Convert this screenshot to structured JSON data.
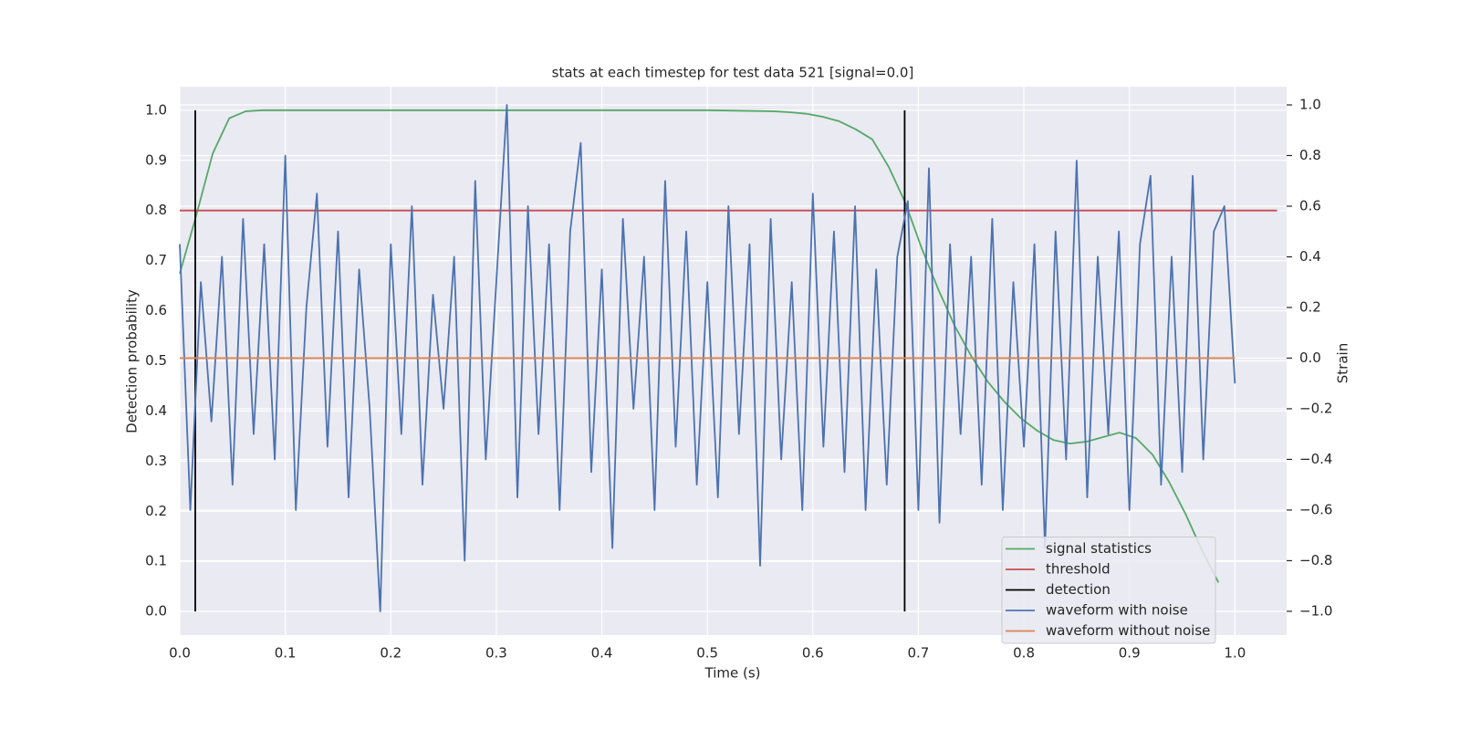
{
  "chart_data": {
    "type": "line",
    "title": "stats at each timestep for test data 521 [signal=0.0]",
    "x_label": "Time (s)",
    "y_label": "Detection probability",
    "y2_label": "Strain",
    "xlim": [
      0,
      1.049
    ],
    "ylim": [
      -0.047,
      1.047
    ],
    "y2lim": [
      -1.094,
      1.072
    ],
    "xticks": [
      {
        "value": 0,
        "label": "0.0"
      },
      0.1,
      0.2,
      0.3,
      0.4,
      0.5,
      0.6,
      0.7,
      0.8,
      0.9,
      {
        "value": 1,
        "label": "1.0"
      }
    ],
    "yticks": [
      {
        "value": 0,
        "label": "0.0"
      },
      0.1,
      0.2,
      0.3,
      0.4,
      0.5,
      0.6,
      0.7,
      0.8,
      0.9,
      {
        "value": 1,
        "label": "1.0"
      }
    ],
    "y2ticks": [
      {
        "value": -1,
        "label": "−1.0"
      },
      {
        "value": -0.8,
        "label": "−0.8"
      },
      {
        "value": -0.6,
        "label": "−0.6"
      },
      {
        "value": -0.4,
        "label": "−0.4"
      },
      {
        "value": -0.2,
        "label": "−0.2"
      },
      {
        "value": 0,
        "label": "0.0"
      },
      0.2,
      0.4,
      0.6,
      0.8,
      {
        "value": 1,
        "label": "1.0"
      }
    ],
    "grid": true,
    "legend": "lower right",
    "series": [
      {
        "name": "signal statistics",
        "color": "#55a868",
        "x": [
          0,
          0.0156,
          0.0313,
          0.0469,
          0.0625,
          0.0781,
          0.5,
          0.5625,
          0.5781,
          0.5938,
          0.6094,
          0.625,
          0.6406,
          0.6563,
          0.6719,
          0.6875,
          0.7031,
          0.7188,
          0.7344,
          0.75,
          0.7656,
          0.7813,
          0.7969,
          0.8125,
          0.8281,
          0.8438,
          0.8594,
          0.875,
          0.8906,
          0.9063,
          0.9219,
          0.9375,
          0.9531,
          0.9688,
          0.9844
        ],
        "values": [
          0.674,
          0.79,
          0.914,
          0.984,
          0.998,
          1.0,
          1.0,
          0.998,
          0.996,
          0.993,
          0.987,
          0.978,
          0.962,
          0.942,
          0.887,
          0.816,
          0.725,
          0.643,
          0.57,
          0.51,
          0.459,
          0.419,
          0.386,
          0.361,
          0.342,
          0.335,
          0.339,
          0.348,
          0.357,
          0.346,
          0.313,
          0.259,
          0.195,
          0.122,
          0.058
        ]
      },
      {
        "name": "threshold",
        "color": "#c44e52",
        "x": [
          0,
          1.04
        ],
        "values": [
          0.8,
          0.8
        ]
      },
      {
        "name": "detection",
        "color": "#000000",
        "x": [
          0.0147,
          0.0147,
          null,
          0.687,
          0.687
        ],
        "values": [
          0,
          1,
          null,
          0,
          1
        ]
      },
      {
        "name": "waveform with noise",
        "color": "#4c72b0",
        "axis": "y2",
        "x": [
          0,
          0.01,
          0.02,
          0.03,
          0.04,
          0.05,
          0.06,
          0.07,
          0.08,
          0.09,
          0.1,
          0.11,
          0.12,
          0.13,
          0.14,
          0.15,
          0.16,
          0.17,
          0.18,
          0.19,
          0.2,
          0.21,
          0.22,
          0.23,
          0.24,
          0.25,
          0.26,
          0.27,
          0.28,
          0.29,
          0.3,
          0.31,
          0.32,
          0.33,
          0.34,
          0.35,
          0.36,
          0.37,
          0.38,
          0.39,
          0.4,
          0.41,
          0.42,
          0.43,
          0.44,
          0.45,
          0.46,
          0.47,
          0.48,
          0.49,
          0.5,
          0.51,
          0.52,
          0.53,
          0.54,
          0.55,
          0.56,
          0.57,
          0.58,
          0.59,
          0.6,
          0.61,
          0.62,
          0.63,
          0.64,
          0.65,
          0.66,
          0.67,
          0.68,
          0.69,
          0.7,
          0.71,
          0.72,
          0.73,
          0.74,
          0.75,
          0.76,
          0.77,
          0.78,
          0.79,
          0.8,
          0.81,
          0.82,
          0.83,
          0.84,
          0.85,
          0.86,
          0.87,
          0.88,
          0.89,
          0.9,
          0.91,
          0.92,
          0.93,
          0.94,
          0.95,
          0.96,
          0.97,
          0.98,
          0.99,
          1.0
        ],
        "values": [
          0.45,
          -0.6,
          0.3,
          -0.25,
          0.4,
          -0.5,
          0.55,
          -0.3,
          0.45,
          -0.4,
          0.8,
          -0.6,
          0.2,
          0.65,
          -0.35,
          0.5,
          -0.55,
          0.35,
          -0.2,
          -1.0,
          0.45,
          -0.3,
          0.6,
          -0.5,
          0.25,
          -0.2,
          0.4,
          -0.8,
          0.7,
          -0.4,
          0.3,
          1.0,
          -0.55,
          0.6,
          -0.3,
          0.45,
          -0.6,
          0.5,
          0.85,
          -0.45,
          0.35,
          -0.75,
          0.55,
          -0.2,
          0.4,
          -0.6,
          0.7,
          -0.35,
          0.5,
          -0.5,
          0.3,
          -0.55,
          0.6,
          -0.3,
          0.45,
          -0.82,
          0.55,
          -0.4,
          0.3,
          -0.6,
          0.65,
          -0.35,
          0.5,
          -0.45,
          0.6,
          -0.6,
          0.35,
          -0.5,
          0.4,
          0.62,
          -0.6,
          0.75,
          -0.65,
          0.45,
          -0.3,
          0.4,
          -0.5,
          0.55,
          -0.6,
          0.3,
          -0.35,
          0.45,
          -0.75,
          0.5,
          -0.4,
          0.78,
          -0.55,
          0.4,
          -0.3,
          0.5,
          -0.6,
          0.45,
          0.72,
          -0.5,
          0.4,
          -0.45,
          0.72,
          -0.4,
          0.5,
          0.6,
          -0.1
        ]
      },
      {
        "name": "waveform without noise",
        "color": "#dd8452",
        "axis": "y2",
        "x": [
          0,
          1
        ],
        "values": [
          0,
          0
        ]
      }
    ]
  }
}
